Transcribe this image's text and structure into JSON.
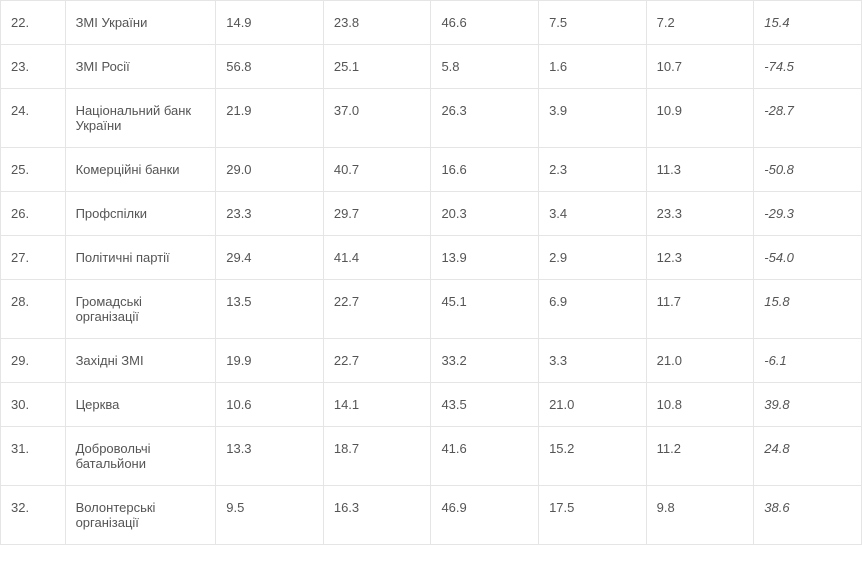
{
  "table": {
    "rows": [
      {
        "num": "22.",
        "name": "ЗМІ України",
        "v1": "14.9",
        "v2": "23.8",
        "v3": "46.6",
        "v4": "7.5",
        "v5": "7.2",
        "v6": "15.4"
      },
      {
        "num": "23.",
        "name": "ЗМІ Росії",
        "v1": "56.8",
        "v2": "25.1",
        "v3": "5.8",
        "v4": "1.6",
        "v5": "10.7",
        "v6": "-74.5"
      },
      {
        "num": "24.",
        "name": "Національний банк України",
        "v1": "21.9",
        "v2": "37.0",
        "v3": "26.3",
        "v4": "3.9",
        "v5": "10.9",
        "v6": "-28.7"
      },
      {
        "num": "25.",
        "name": "Комерційні банки",
        "v1": "29.0",
        "v2": "40.7",
        "v3": "16.6",
        "v4": "2.3",
        "v5": "11.3",
        "v6": "-50.8"
      },
      {
        "num": "26.",
        "name": "Профспілки",
        "v1": "23.3",
        "v2": "29.7",
        "v3": "20.3",
        "v4": "3.4",
        "v5": "23.3",
        "v6": "-29.3"
      },
      {
        "num": "27.",
        "name": "Політичні партії",
        "v1": "29.4",
        "v2": "41.4",
        "v3": "13.9",
        "v4": "2.9",
        "v5": "12.3",
        "v6": "-54.0"
      },
      {
        "num": "28.",
        "name": "Громадські організації",
        "v1": "13.5",
        "v2": "22.7",
        "v3": "45.1",
        "v4": "6.9",
        "v5": "11.7",
        "v6": "15.8"
      },
      {
        "num": "29.",
        "name": "Західні ЗМІ",
        "v1": "19.9",
        "v2": "22.7",
        "v3": "33.2",
        "v4": "3.3",
        "v5": "21.0",
        "v6": "-6.1"
      },
      {
        "num": "30.",
        "name": "Церква",
        "v1": "10.6",
        "v2": "14.1",
        "v3": "43.5",
        "v4": "21.0",
        "v5": "10.8",
        "v6": "39.8"
      },
      {
        "num": "31.",
        "name": "Добровольчі батальйони",
        "v1": "13.3",
        "v2": "18.7",
        "v3": "41.6",
        "v4": "15.2",
        "v5": "11.2",
        "v6": "24.8"
      },
      {
        "num": "32.",
        "name": "Волонтерські організації",
        "v1": "9.5",
        "v2": "16.3",
        "v3": "46.9",
        "v4": "17.5",
        "v5": "9.8",
        "v6": "38.6"
      }
    ]
  }
}
